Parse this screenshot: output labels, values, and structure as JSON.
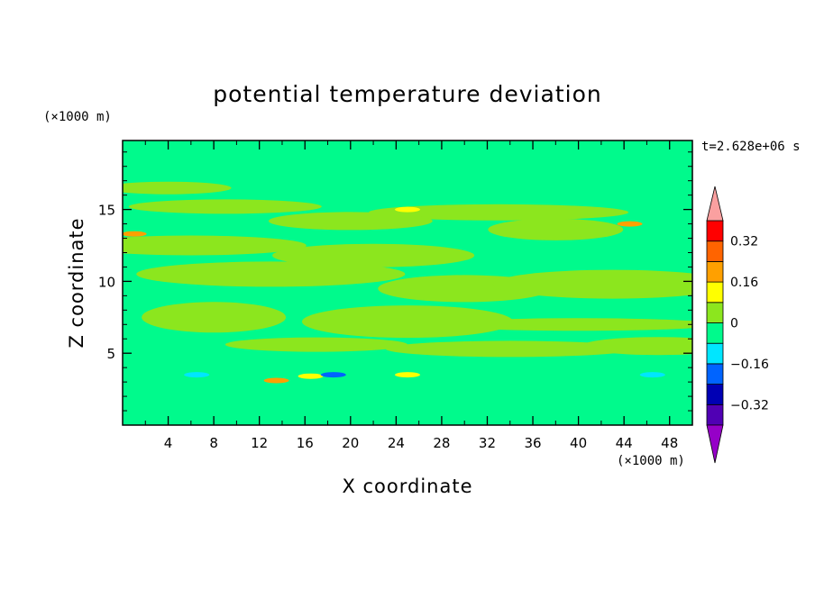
{
  "chart_data": {
    "type": "heatmap",
    "title": "potential temperature deviation",
    "xlabel": "X coordinate",
    "ylabel": "Z coordinate",
    "x_unit": "(×1000 m)",
    "y_unit": "(×1000 m)",
    "time_label": "t=2.628e+06 s",
    "xlim": [
      0,
      50
    ],
    "ylim": [
      0,
      19.8
    ],
    "x_ticks": [
      "4",
      "8",
      "12",
      "16",
      "20",
      "24",
      "28",
      "32",
      "36",
      "40",
      "44",
      "48"
    ],
    "y_ticks": [
      "5",
      "10",
      "15"
    ],
    "x_tick_values": [
      4,
      8,
      12,
      16,
      20,
      24,
      28,
      32,
      36,
      40,
      44,
      48
    ],
    "y_tick_values": [
      5,
      10,
      15
    ],
    "colorbar": {
      "labels": [
        "0.32",
        "0.16",
        "0",
        "−0.16",
        "−0.32"
      ],
      "label_values": [
        0.32,
        0.16,
        0,
        -0.16,
        -0.32
      ],
      "levels": [
        -0.4,
        -0.32,
        -0.24,
        -0.16,
        -0.08,
        0,
        0.08,
        0.16,
        0.24,
        0.32,
        0.4
      ],
      "colors": [
        "#9600C8",
        "#5000B4",
        "#0000B4",
        "#0064FF",
        "#00E6FF",
        "#00FA8C",
        "#8CE61E",
        "#FFFF00",
        "#FFA000",
        "#FF6400",
        "#FF0000",
        "#FAA0A0"
      ],
      "extend": "both"
    },
    "background_color": "#00FA8C",
    "anomalies": [
      {
        "x": 4.0,
        "z": 16.5,
        "value": 0.05
      },
      {
        "x": 9.0,
        "z": 15.2,
        "value": 0.05
      },
      {
        "x": 33.0,
        "z": 14.8,
        "value": 0.05
      },
      {
        "x": 20.0,
        "z": 14.2,
        "value": 0.05
      },
      {
        "x": 6.0,
        "z": 12.5,
        "value": 0.05
      },
      {
        "x": 38.0,
        "z": 13.6,
        "value": 0.05
      },
      {
        "x": 22.0,
        "z": 11.8,
        "value": 0.05
      },
      {
        "x": 13.0,
        "z": 10.5,
        "value": 0.05
      },
      {
        "x": 30.0,
        "z": 9.5,
        "value": 0.05
      },
      {
        "x": 43.0,
        "z": 9.8,
        "value": 0.05
      },
      {
        "x": 8.0,
        "z": 7.5,
        "value": 0.05
      },
      {
        "x": 25.0,
        "z": 7.2,
        "value": 0.05
      },
      {
        "x": 40.0,
        "z": 7.0,
        "value": 0.05
      },
      {
        "x": 17.0,
        "z": 5.6,
        "value": 0.05
      },
      {
        "x": 34.0,
        "z": 5.3,
        "value": 0.05
      },
      {
        "x": 47.0,
        "z": 5.5,
        "value": 0.05
      },
      {
        "x": 44.5,
        "z": 14.0,
        "value": 0.18
      },
      {
        "x": 1.0,
        "z": 13.3,
        "value": 0.18
      },
      {
        "x": 25.0,
        "z": 15.0,
        "value": 0.12
      },
      {
        "x": 13.5,
        "z": 3.1,
        "value": 0.18
      },
      {
        "x": 25.0,
        "z": 3.5,
        "value": 0.15
      },
      {
        "x": 16.5,
        "z": 3.4,
        "value": 0.12
      },
      {
        "x": 6.5,
        "z": 3.5,
        "value": -0.1
      },
      {
        "x": 18.5,
        "z": 3.5,
        "value": -0.2
      },
      {
        "x": 46.5,
        "z": 3.5,
        "value": -0.12
      },
      {
        "x": 34.0,
        "z": 3.6,
        "value": -0.06
      }
    ]
  }
}
